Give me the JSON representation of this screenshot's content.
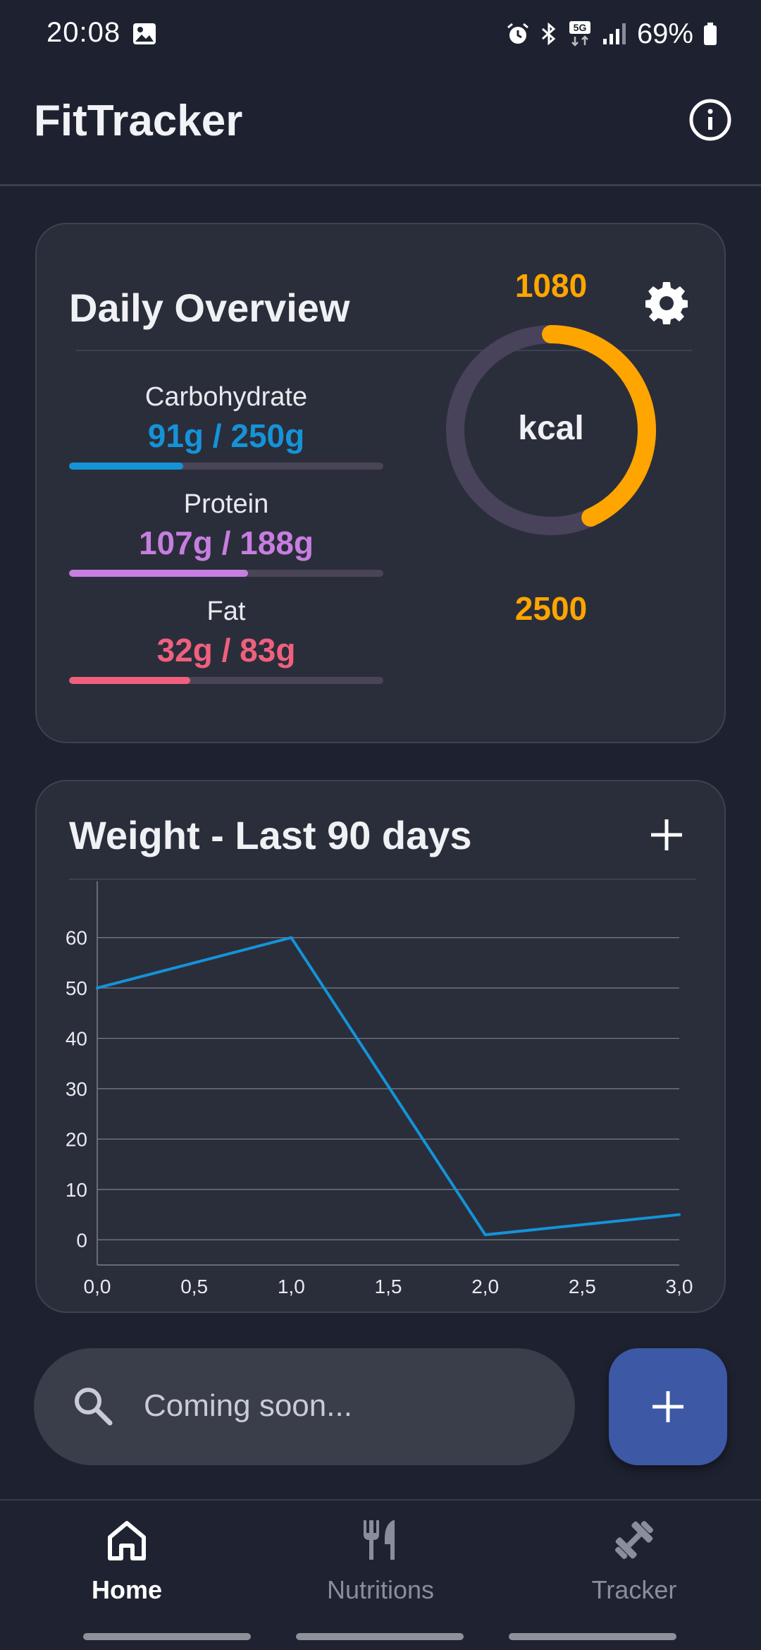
{
  "status_bar": {
    "time": "20:08",
    "battery_percent": "69%",
    "network": "5G",
    "icons": [
      "gallery-icon",
      "alarm-icon",
      "bluetooth-icon",
      "5g-icon",
      "signal-icon",
      "battery-icon"
    ]
  },
  "app": {
    "title": "FitTracker"
  },
  "overview": {
    "title": "Daily Overview",
    "macros": [
      {
        "name": "Carbohydrate",
        "value": "91g / 250g",
        "current": 91,
        "goal": 250,
        "color": "#1493d9"
      },
      {
        "name": "Protein",
        "value": "107g / 188g",
        "current": 107,
        "goal": 188,
        "color": "#c77ee0"
      },
      {
        "name": "Fat",
        "value": "32g / 83g",
        "current": 32,
        "goal": 83,
        "color": "#f0607e"
      }
    ],
    "kcal": {
      "current": "1080",
      "goal": "2500",
      "current_value": 1080,
      "goal_value": 2500,
      "label": "kcal",
      "color": "#ffa500",
      "track_color": "#48425a"
    }
  },
  "weight": {
    "title": "Weight - Last 90 days"
  },
  "chart_data": {
    "type": "line",
    "title": "",
    "xlabel": "",
    "ylabel": "",
    "x": [
      0.0,
      1.0,
      2.0,
      3.0
    ],
    "series": [
      {
        "values": [
          50,
          60,
          1,
          5
        ]
      }
    ],
    "x_ticks": [
      "0,0",
      "0,5",
      "1,0",
      "1,5",
      "2,0",
      "2,5",
      "3,0"
    ],
    "x_tick_values": [
      0,
      0.5,
      1,
      1.5,
      2,
      2.5,
      3
    ],
    "y_ticks": [
      0,
      10,
      20,
      30,
      40,
      50,
      60
    ],
    "xlim": [
      0,
      3
    ],
    "ylim": [
      -5,
      65
    ],
    "grid": "horizontal",
    "line_color": "#1493d9"
  },
  "search": {
    "placeholder": "Coming soon..."
  },
  "nav": {
    "items": [
      {
        "label": "Home",
        "icon": "home-icon",
        "active": true
      },
      {
        "label": "Nutritions",
        "icon": "utensils-icon",
        "active": false
      },
      {
        "label": "Tracker",
        "icon": "dumbbell-icon",
        "active": false
      }
    ]
  },
  "colors": {
    "background": "#1e2230",
    "card": "#2a2e3a",
    "accent_blue": "#1493d9",
    "accent_orange": "#ffa500",
    "fab": "#3d58a4"
  }
}
